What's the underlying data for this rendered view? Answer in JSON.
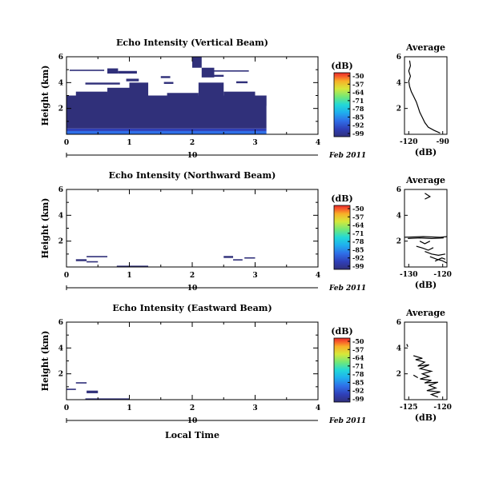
{
  "colors": {
    "background": "#dde0ee",
    "colormap": [
      "#30307a",
      "#2f3fb8",
      "#2f6fe8",
      "#1fb0ee",
      "#22d8d8",
      "#6fe87a",
      "#d6e83a",
      "#f8b028",
      "#f8602a",
      "#e82a2a"
    ]
  },
  "chart_data": [
    {
      "type": "heatmap",
      "id": "vertical",
      "title": "Echo Intensity (Vertical Beam)",
      "ylabel": "Height (km)",
      "xlim": [
        0,
        4
      ],
      "ylim": [
        0,
        6
      ],
      "y_tick_labels": [
        "6",
        "4",
        "2"
      ],
      "x_tick_labels": [
        "0",
        "1",
        "2",
        "3",
        "4"
      ],
      "time_label": "10",
      "date_label": "Feb 2011",
      "colorbar": {
        "unit": "(dB)",
        "ticks": [
          "-50",
          "-57",
          "-64",
          "-71",
          "-78",
          "-85",
          "-92",
          "-99"
        ]
      },
      "cells": [
        {
          "x": [
            0,
            3.18
          ],
          "y": [
            0,
            0.25
          ],
          "c": 2
        },
        {
          "x": [
            0,
            3.18
          ],
          "y": [
            0.25,
            0.45
          ],
          "c": 1
        },
        {
          "x": [
            0,
            3.18
          ],
          "y": [
            0.45,
            3.0
          ],
          "c": 0
        },
        {
          "x": [
            0,
            0.15
          ],
          "y": [
            3.0,
            2.7
          ],
          "c": 0
        },
        {
          "x": [
            0.15,
            0.65
          ],
          "y": [
            3.0,
            3.3
          ],
          "c": 0
        },
        {
          "x": [
            0.65,
            1.0
          ],
          "y": [
            3.0,
            3.6
          ],
          "c": 0
        },
        {
          "x": [
            1.0,
            1.3
          ],
          "y": [
            3.0,
            4.0
          ],
          "c": 0
        },
        {
          "x": [
            1.3,
            1.6
          ],
          "y": [
            3.0,
            2.6
          ],
          "c": 0
        },
        {
          "x": [
            1.6,
            2.1
          ],
          "y": [
            3.0,
            3.2
          ],
          "c": 0
        },
        {
          "x": [
            2.1,
            2.5
          ],
          "y": [
            3.0,
            4.0
          ],
          "c": 0
        },
        {
          "x": [
            2.5,
            3.0
          ],
          "y": [
            3.0,
            3.3
          ],
          "c": 0
        },
        {
          "x": [
            3.0,
            3.18
          ],
          "y": [
            3.0,
            2.2
          ],
          "c": 0
        },
        {
          "x": [
            0.65,
            0.82
          ],
          "y": [
            5.1,
            4.7
          ],
          "c": 0
        },
        {
          "x": [
            0.82,
            1.12
          ],
          "y": [
            4.7,
            4.9
          ],
          "c": 0
        },
        {
          "x": [
            0.3,
            0.85
          ],
          "y": [
            4.0,
            3.85
          ],
          "c": 0
        },
        {
          "x": [
            0.95,
            1.15
          ],
          "y": [
            4.3,
            4.1
          ],
          "c": 0
        },
        {
          "x": [
            1.5,
            1.65
          ],
          "y": [
            4.5,
            4.35
          ],
          "c": 0
        },
        {
          "x": [
            1.55,
            1.7
          ],
          "y": [
            4.05,
            3.9
          ],
          "c": 0
        },
        {
          "x": [
            2.0,
            2.15
          ],
          "y": [
            6.0,
            5.15
          ],
          "c": 0
        },
        {
          "x": [
            2.15,
            2.35
          ],
          "y": [
            5.15,
            4.4
          ],
          "c": 0
        },
        {
          "x": [
            2.35,
            2.5
          ],
          "y": [
            4.6,
            4.45
          ],
          "c": 0
        },
        {
          "x": [
            2.7,
            2.88
          ],
          "y": [
            4.1,
            3.95
          ],
          "c": 0
        },
        {
          "x": [
            0.05,
            0.6
          ],
          "y": [
            5.0,
            4.9
          ],
          "c": 0
        },
        {
          "x": [
            2.2,
            2.9
          ],
          "y": [
            4.95,
            4.85
          ],
          "c": 0
        }
      ],
      "profile": {
        "title": "Average",
        "xlabel": "(dB)",
        "xlim": [
          -125,
          -75
        ],
        "ylim": [
          0,
          6
        ],
        "x_tick_labels": [
          "-120",
          "-90"
        ],
        "y_tick_labels": [
          "6",
          "4",
          "2"
        ],
        "lines": [
          [
            [
              -119,
              5.7
            ],
            [
              -118,
              5.3
            ],
            [
              -120,
              4.9
            ],
            [
              -118,
              4.5
            ],
            [
              -120,
              4.1
            ],
            [
              -119,
              3.7
            ],
            [
              -117,
              3.3
            ],
            [
              -114,
              2.9
            ],
            [
              -111,
              2.5
            ],
            [
              -109,
              2.1
            ],
            [
              -107,
              1.7
            ],
            [
              -104,
              1.3
            ],
            [
              -101,
              0.9
            ],
            [
              -97,
              0.55
            ],
            [
              -90,
              0.3
            ],
            [
              -83,
              0.1
            ]
          ]
        ]
      }
    },
    {
      "type": "heatmap",
      "id": "northward",
      "title": "Echo Intensity (Northward Beam)",
      "ylabel": "Height (km)",
      "xlim": [
        0,
        4
      ],
      "ylim": [
        0,
        6
      ],
      "y_tick_labels": [
        "6",
        "4",
        "2"
      ],
      "x_tick_labels": [
        "0",
        "1",
        "2",
        "3",
        "4"
      ],
      "time_label": "10",
      "date_label": "Feb 2011",
      "colorbar": {
        "unit": "(dB)",
        "ticks": [
          "-50",
          "-57",
          "-64",
          "-71",
          "-78",
          "-85",
          "-92",
          "-99"
        ]
      },
      "cells": [
        {
          "x": [
            0.15,
            0.32
          ],
          "y": [
            0.6,
            0.45
          ],
          "c": 0
        },
        {
          "x": [
            0.32,
            0.5
          ],
          "y": [
            0.45,
            0.35
          ],
          "c": 0
        },
        {
          "x": [
            0.32,
            0.65
          ],
          "y": [
            0.85,
            0.75
          ],
          "c": 0
        },
        {
          "x": [
            0.8,
            1.3
          ],
          "y": [
            0.1,
            0.02
          ],
          "c": 0
        },
        {
          "x": [
            2.5,
            2.65
          ],
          "y": [
            0.85,
            0.7
          ],
          "c": 0
        },
        {
          "x": [
            2.65,
            2.8
          ],
          "y": [
            0.6,
            0.5
          ],
          "c": 0
        },
        {
          "x": [
            2.83,
            3.0
          ],
          "y": [
            0.75,
            0.65
          ],
          "c": 0
        }
      ],
      "profile": {
        "title": "Average",
        "xlabel": "(dB)",
        "xlim": [
          -141,
          -116
        ],
        "ylim": [
          0,
          6
        ],
        "x_tick_labels": [
          "-130",
          "-120"
        ],
        "y_tick_labels": [
          "6",
          "4",
          "2"
        ],
        "lines": [
          [
            [
              -129,
              5.7
            ],
            [
              -126,
              5.45
            ],
            [
              -129,
              5.25
            ]
          ],
          [
            [
              -141,
              2.3
            ],
            [
              -130,
              2.35
            ],
            [
              -120,
              2.3
            ],
            [
              -116,
              2.35
            ]
          ],
          [
            [
              -139,
              2.2
            ],
            [
              -132,
              2.25
            ],
            [
              -125,
              2.2
            ],
            [
              -118,
              2.25
            ]
          ],
          [
            [
              -132,
              2.0
            ],
            [
              -129,
              1.8
            ],
            [
              -126,
              2.0
            ]
          ],
          [
            [
              -134,
              1.6
            ],
            [
              -130,
              1.45
            ],
            [
              -127,
              1.3
            ],
            [
              -124,
              1.5
            ]
          ],
          [
            [
              -129,
              1.2
            ],
            [
              -125,
              1.0
            ],
            [
              -121,
              0.9
            ],
            [
              -117,
              1.0
            ]
          ],
          [
            [
              -126,
              0.8
            ],
            [
              -122,
              0.6
            ],
            [
              -119,
              0.5
            ],
            [
              -116,
              0.3
            ]
          ],
          [
            [
              -123,
              0.45
            ],
            [
              -119,
              0.7
            ],
            [
              -117,
              0.6
            ]
          ]
        ]
      }
    },
    {
      "type": "heatmap",
      "id": "eastward",
      "title": "Echo Intensity (Eastward Beam)",
      "ylabel": "Height (km)",
      "xlim": [
        0,
        4
      ],
      "ylim": [
        0,
        6
      ],
      "y_tick_labels": [
        "6",
        "4",
        "2"
      ],
      "x_tick_labels": [
        "0",
        "1",
        "2",
        "3",
        "4"
      ],
      "time_label": "10",
      "date_label": "Feb 2011",
      "colorbar": {
        "unit": "(dB)",
        "ticks": [
          "-50",
          "-57",
          "-64",
          "-71",
          "-78",
          "-85",
          "-92",
          "-99"
        ]
      },
      "cells": [
        {
          "x": [
            0.0,
            0.15
          ],
          "y": [
            0.85,
            0.75
          ],
          "c": 0
        },
        {
          "x": [
            0.15,
            0.32
          ],
          "y": [
            1.35,
            1.25
          ],
          "c": 0
        },
        {
          "x": [
            0.32,
            0.5
          ],
          "y": [
            0.7,
            0.5
          ],
          "c": 0
        },
        {
          "x": [
            0.3,
            1.0
          ],
          "y": [
            0.1,
            0.02
          ],
          "c": 0
        }
      ],
      "profile": {
        "title": "Average",
        "xlabel": "(dB)",
        "xlim": [
          -131,
          -112
        ],
        "ylim": [
          0,
          6
        ],
        "x_tick_labels": [
          "-125",
          "-120"
        ],
        "y_tick_labels": [
          "6",
          "4",
          "2"
        ],
        "lines": [
          [
            [
              -130,
              4.3
            ],
            [
              -129.5,
              4.1
            ]
          ],
          [
            [
              -127,
              3.4
            ],
            [
              -123,
              3.2
            ],
            [
              -126,
              3.1
            ],
            [
              -122,
              2.9
            ],
            [
              -125,
              2.6
            ],
            [
              -120,
              2.7
            ],
            [
              -124,
              2.4
            ],
            [
              -119,
              2.2
            ],
            [
              -123,
              2.0
            ],
            [
              -120,
              1.8
            ],
            [
              -124,
              1.6
            ],
            [
              -119,
              1.5
            ],
            [
              -122,
              1.3
            ],
            [
              -116,
              1.35
            ],
            [
              -120,
              1.1
            ],
            [
              -117,
              0.9
            ],
            [
              -121,
              0.7
            ],
            [
              -115,
              0.6
            ],
            [
              -119,
              0.4
            ],
            [
              -116,
              0.2
            ]
          ],
          [
            [
              -127,
              1.9
            ],
            [
              -125,
              1.7
            ]
          ]
        ]
      }
    }
  ],
  "footer": {
    "xlabel": "Local Time"
  }
}
